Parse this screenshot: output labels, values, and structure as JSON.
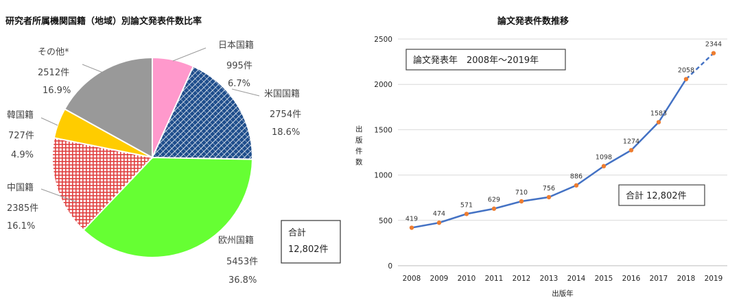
{
  "chart_data": [
    {
      "type": "pie",
      "title": "研究者所属機関国籍（地域）別論文発表件数比率",
      "slices": [
        {
          "label": "日本国籍",
          "count": "995件",
          "percent": "6.7%",
          "value": 995,
          "color": "#ff99cc"
        },
        {
          "label": "米国国籍",
          "count": "2754件",
          "percent": "18.6%",
          "value": 2754,
          "color": "#1f4e8c",
          "pattern": "hatch"
        },
        {
          "label": "欧州国籍",
          "count": "5453件",
          "percent": "36.8%",
          "value": 5453,
          "color": "#66ff33"
        },
        {
          "label": "中国籍",
          "count": "2385件",
          "percent": "16.1%",
          "value": 2385,
          "color": "#e04040",
          "pattern": "grid"
        },
        {
          "label": "韓国籍",
          "count": "727件",
          "percent": "4.9%",
          "value": 727,
          "color": "#ffcc00"
        },
        {
          "label": "その他*",
          "count": "2512件",
          "percent": "16.9%",
          "value": 2512,
          "color": "#999999"
        }
      ],
      "total_box": {
        "line1": "合計",
        "line2": "12,802件"
      }
    },
    {
      "type": "line",
      "title": "論文発表件数推移",
      "xlabel": "出版年",
      "ylabel": "出版件数",
      "ylim": [
        0,
        2500
      ],
      "yticks": [
        0,
        500,
        1000,
        1500,
        2000,
        2500
      ],
      "grid": true,
      "x": [
        "2008",
        "2009",
        "2010",
        "2011",
        "2012",
        "2013",
        "2014",
        "2015",
        "2016",
        "2017",
        "2018",
        "2019"
      ],
      "series": [
        {
          "values": [
            419,
            474,
            571,
            629,
            710,
            756,
            886,
            1098,
            1274,
            1583,
            2058,
            2344
          ],
          "color": "#4472c4",
          "marker_color": "#ed7d31",
          "dashed_last_segment": true
        }
      ],
      "period_box": "論文発表年　2008年～2019年",
      "total_box": "合計 12,802件"
    }
  ]
}
